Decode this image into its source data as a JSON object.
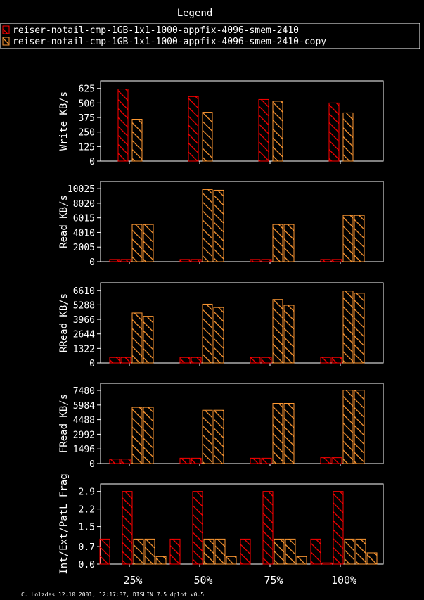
{
  "legend": {
    "title": "Legend",
    "entries": [
      {
        "name": "reiser-notail-cmp-1GB-1x1-1000-appfix-4096-smem-2410",
        "color": "#ff0000"
      },
      {
        "name": "reiser-notail-cmp-1GB-1x1-1000-appfix-4096-smem-2410-copy",
        "color": "#ff9933"
      }
    ]
  },
  "footer": "C. Lolzdes 12.10.2001, 12:17:37, DISLIN 7.5 dplot v0.5",
  "chart_data": {
    "type": "bar",
    "categories": [
      "25%",
      "50%",
      "75%",
      "100%"
    ],
    "panels": [
      {
        "ylabel": "Write KB/s",
        "ylim": [
          0,
          690
        ],
        "yticks": [
          "0",
          "125",
          "250",
          "375",
          "500",
          "625"
        ],
        "bars": [
          [
            620,
            360
          ],
          [
            555,
            420
          ],
          [
            530,
            515
          ],
          [
            500,
            415
          ]
        ]
      },
      {
        "ylabel": "Read KB/s",
        "ylim": [
          0,
          11000
        ],
        "yticks": [
          "0",
          "2005",
          "4010",
          "6015",
          "8020",
          "10025"
        ],
        "bars": [
          [
            300,
            300,
            5100,
            5100
          ],
          [
            300,
            300,
            9900,
            9800
          ],
          [
            300,
            300,
            5100,
            5100
          ],
          [
            300,
            300,
            6350,
            6350
          ]
        ]
      },
      {
        "ylabel": "RRead KB/s",
        "ylim": [
          0,
          7300
        ],
        "yticks": [
          "0",
          "1322",
          "2644",
          "3966",
          "5288",
          "6610"
        ],
        "bars": [
          [
            500,
            500,
            4550,
            4250
          ],
          [
            500,
            500,
            5350,
            5050
          ],
          [
            500,
            500,
            5780,
            5250
          ],
          [
            500,
            500,
            6550,
            6350
          ]
        ]
      },
      {
        "ylabel": "FRead KB/s",
        "ylim": [
          0,
          8200
        ],
        "yticks": [
          "0",
          "1496",
          "2992",
          "4488",
          "5984",
          "7480"
        ],
        "bars": [
          [
            450,
            450,
            5750,
            5750
          ],
          [
            550,
            550,
            5450,
            5450
          ],
          [
            550,
            550,
            6150,
            6150
          ],
          [
            600,
            600,
            7500,
            7500
          ]
        ]
      },
      {
        "ylabel": "Int/Ext/PatL Frag",
        "ylim": [
          0,
          3.2
        ],
        "yticks": [
          "0.0",
          "0.7",
          "1.5",
          "2.2",
          "2.9"
        ],
        "bars": [
          [
            1.0,
            0,
            2.9,
            1.0,
            1.0,
            0.3
          ],
          [
            1.0,
            0,
            2.9,
            1.0,
            1.0,
            0.3
          ],
          [
            1.0,
            0,
            2.9,
            1.0,
            1.0,
            0.3
          ],
          [
            1.0,
            0.05,
            2.9,
            1.0,
            1.0,
            0.45
          ]
        ]
      }
    ],
    "series_colors": [
      "#ff0000",
      "#ff9933"
    ]
  }
}
